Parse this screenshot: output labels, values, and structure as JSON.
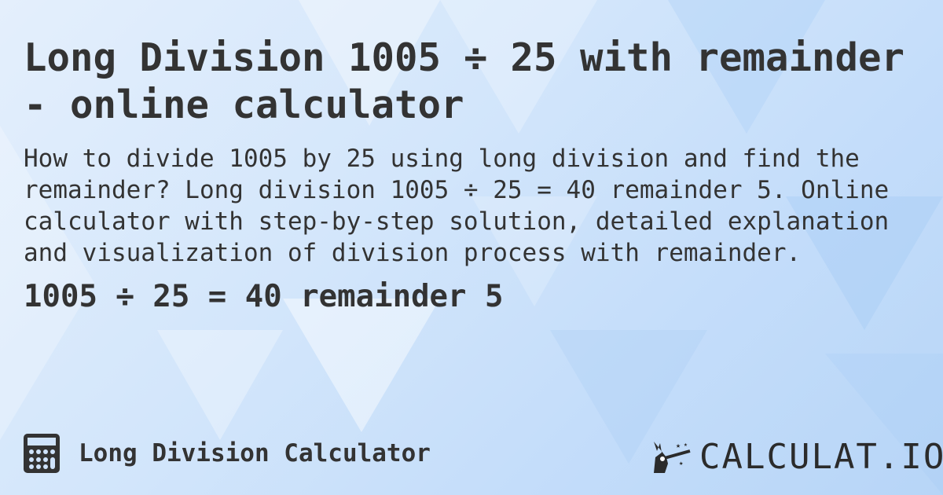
{
  "title": "Long Division 1005 ÷ 25 with remainder - online calculator",
  "description": "How to divide 1005 by 25 using long division and find the remainder? Long division 1005 ÷ 25 = 40 remainder 5. Online calculator with step-by-step solution, detailed explanation and visualization of division process with remainder.",
  "result": "1005 ÷ 25 = 40 remainder 5",
  "footer": {
    "calculator_name": "Long Division Calculator",
    "icon": "calculator-icon"
  },
  "logo": {
    "text": "CALCULAT.IO",
    "icon": "magic-hand-wand-icon"
  },
  "colors": {
    "text": "#333333",
    "background": "#cfe3fb"
  }
}
